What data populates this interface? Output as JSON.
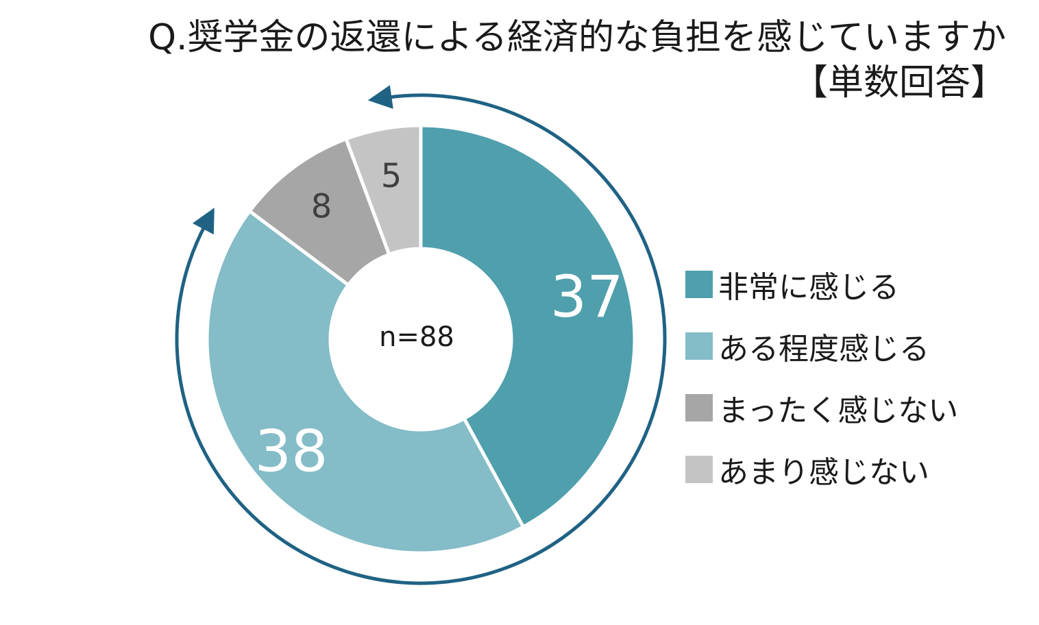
{
  "title": {
    "line1": "Q.奨学金の返還による経済的な負担を感じていますか",
    "line2": "【単数回答】"
  },
  "chart_data": {
    "type": "pie",
    "variant": "donut",
    "center_label": "n=88",
    "categories": [
      "非常に感じる",
      "ある程度感じる",
      "まったく感じない",
      "あまり感じない"
    ],
    "values": [
      37,
      38,
      8,
      5
    ],
    "data_labels": [
      "37",
      "38",
      "8",
      "5"
    ],
    "colors": [
      "#4f9fad",
      "#84bcc7",
      "#a6a6a6",
      "#c4c4c4"
    ],
    "label_colors": [
      "#ffffff",
      "#ffffff",
      "#404040",
      "#404040"
    ],
    "legend_placement": "right",
    "arrow_color": "#1f6284"
  }
}
